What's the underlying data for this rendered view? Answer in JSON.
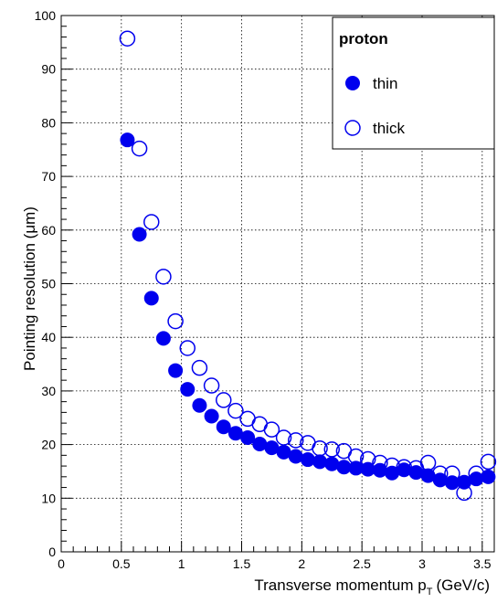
{
  "chart_data": {
    "type": "scatter",
    "title": "",
    "xlabel": "Transverse momentum p",
    "xlabel_subscript": "T",
    "xlabel_unit": "(GeV/c)",
    "ylabel": "Pointing resolution (μm)",
    "xlim": [
      0,
      3.6
    ],
    "ylim": [
      0,
      100
    ],
    "x_ticks": [
      0,
      0.5,
      1,
      1.5,
      2,
      2.5,
      3,
      3.5
    ],
    "x_tick_labels": [
      "0",
      "0.5",
      "1",
      "1.5",
      "2",
      "2.5",
      "3",
      "3.5"
    ],
    "y_ticks": [
      0,
      10,
      20,
      30,
      40,
      50,
      60,
      70,
      80,
      90,
      100
    ],
    "y_tick_labels": [
      "0",
      "10",
      "20",
      "30",
      "40",
      "50",
      "60",
      "70",
      "80",
      "90",
      "100"
    ],
    "grid": true,
    "legend": {
      "title": "proton",
      "placement": "top-right"
    },
    "series": [
      {
        "name": "thin",
        "marker": "filled-circle",
        "color": "#0000ee",
        "x": [
          0.55,
          0.65,
          0.75,
          0.85,
          0.95,
          1.05,
          1.15,
          1.25,
          1.35,
          1.45,
          1.55,
          1.65,
          1.75,
          1.85,
          1.95,
          2.05,
          2.15,
          2.25,
          2.35,
          2.45,
          2.55,
          2.65,
          2.75,
          2.85,
          2.95,
          3.05,
          3.15,
          3.25,
          3.35,
          3.45,
          3.55
        ],
        "y": [
          76.8,
          59.2,
          47.3,
          39.8,
          33.8,
          30.3,
          27.3,
          25.3,
          23.3,
          22.1,
          21.3,
          20.1,
          19.4,
          18.6,
          17.8,
          17.2,
          16.8,
          16.4,
          15.8,
          15.6,
          15.4,
          15.2,
          14.7,
          15.3,
          14.8,
          14.2,
          13.4,
          12.9,
          13.0,
          13.6,
          14.0
        ]
      },
      {
        "name": "thick",
        "marker": "open-circle",
        "color": "#0000ee",
        "x": [
          0.55,
          0.65,
          0.75,
          0.85,
          0.95,
          1.05,
          1.15,
          1.25,
          1.35,
          1.45,
          1.55,
          1.65,
          1.75,
          1.85,
          1.95,
          2.05,
          2.15,
          2.25,
          2.35,
          2.45,
          2.55,
          2.65,
          2.75,
          2.85,
          2.95,
          3.05,
          3.15,
          3.25,
          3.35,
          3.45,
          3.55
        ],
        "y": [
          95.7,
          75.2,
          61.5,
          51.3,
          43.0,
          38.0,
          34.3,
          31.0,
          28.3,
          26.3,
          24.8,
          23.8,
          22.8,
          21.3,
          20.8,
          20.3,
          19.3,
          19.1,
          18.8,
          17.8,
          17.3,
          16.6,
          16.1,
          15.8,
          15.6,
          16.6,
          14.6,
          14.6,
          11.0,
          14.6,
          16.8
        ]
      }
    ]
  }
}
